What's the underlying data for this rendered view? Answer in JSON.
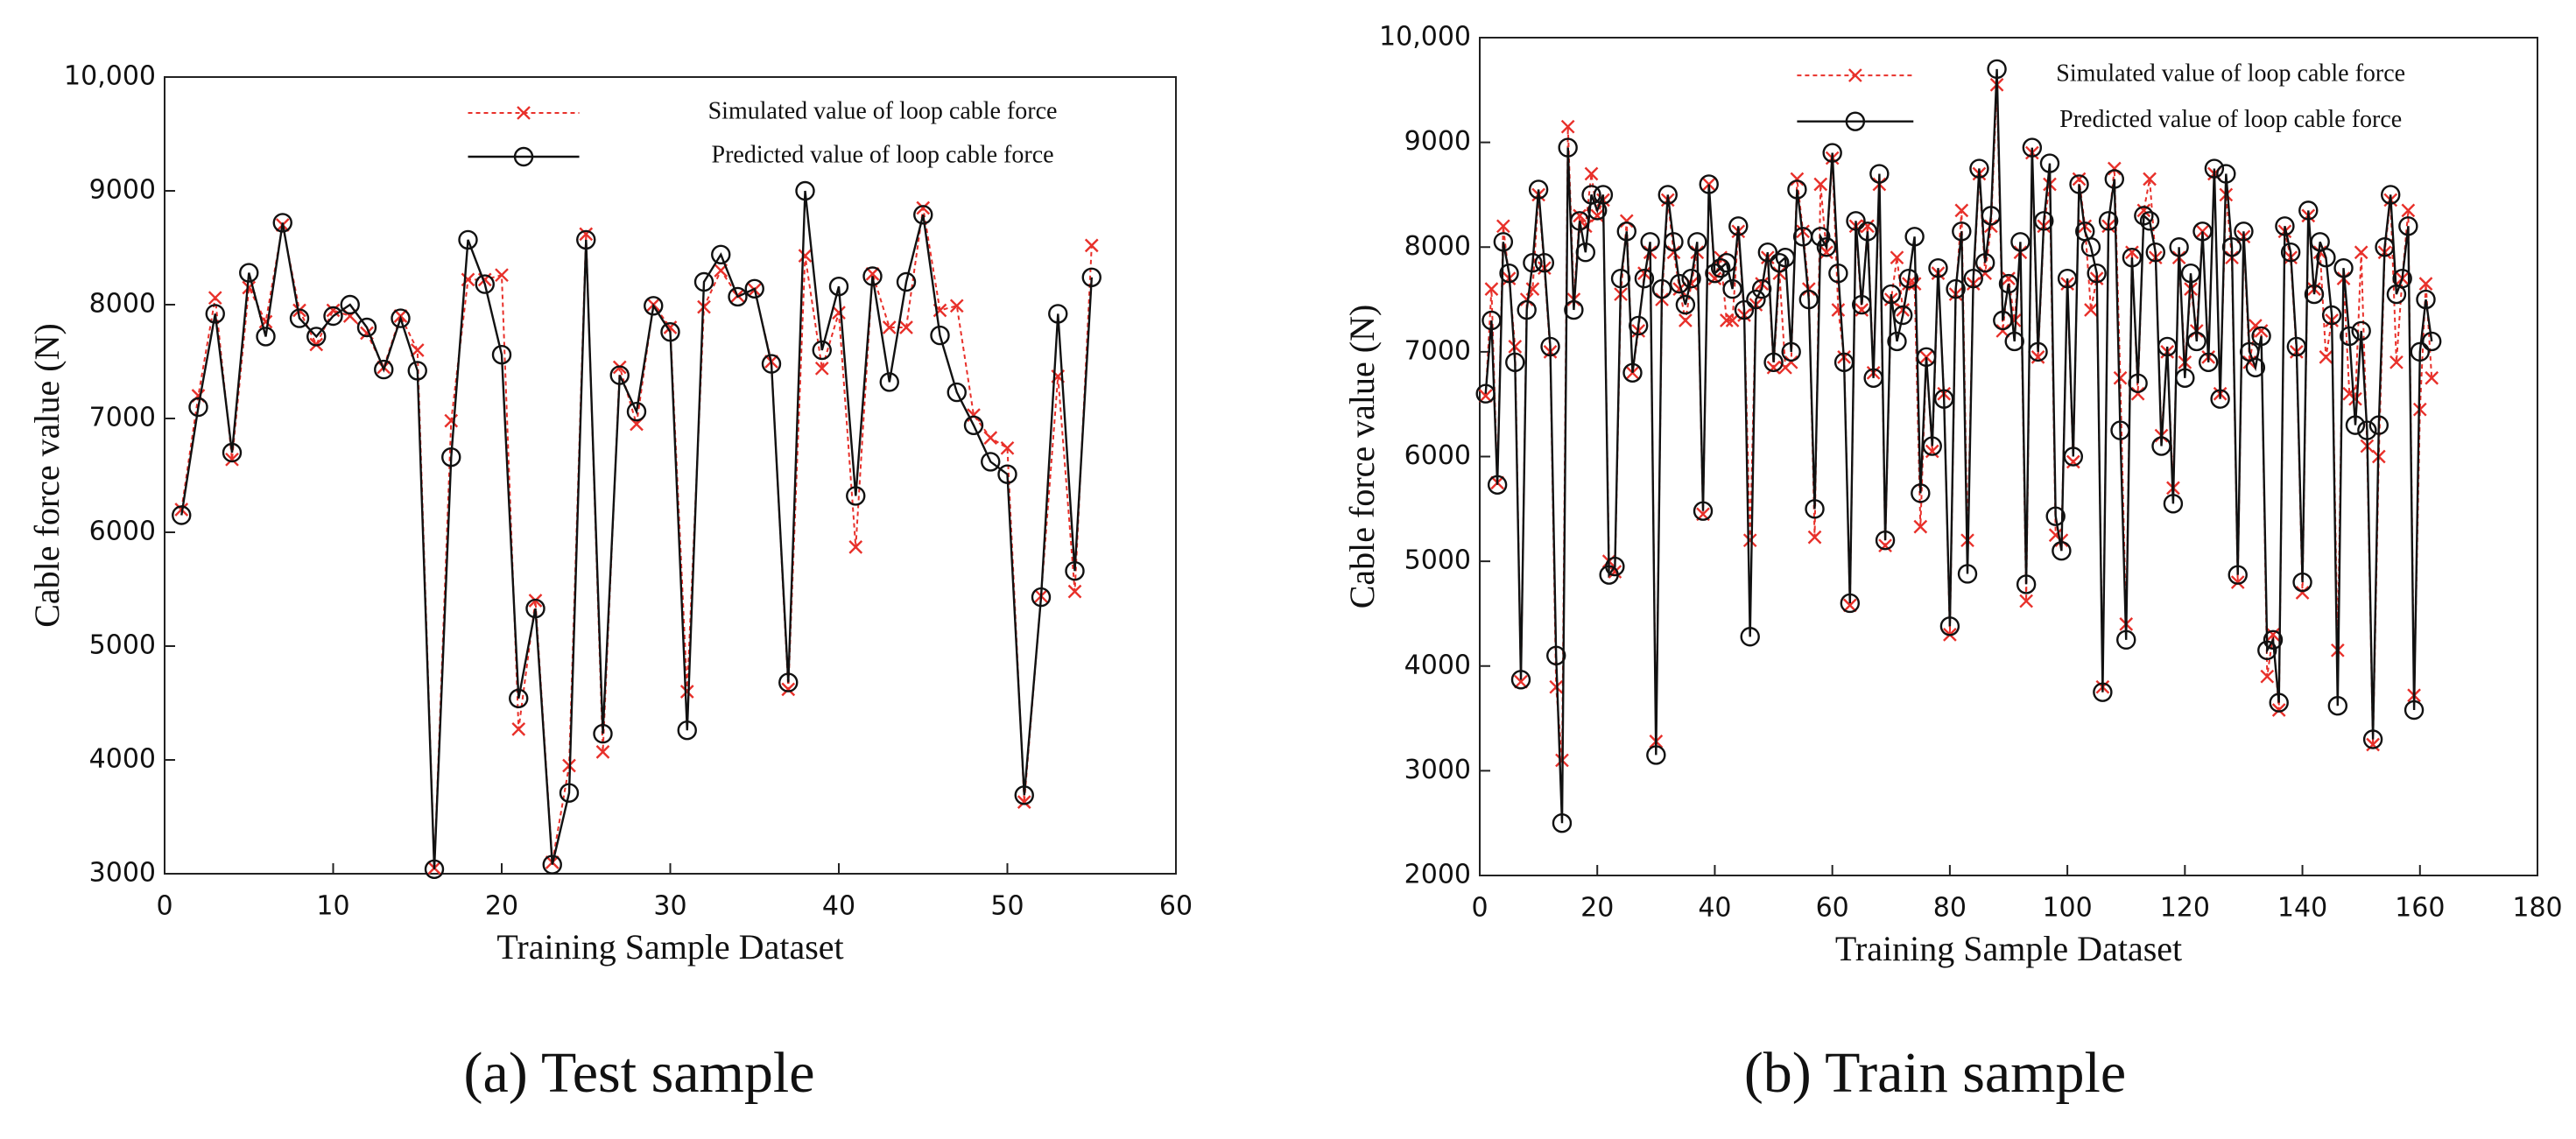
{
  "chart_data": [
    {
      "type": "line",
      "caption": "(a) Test sample",
      "xlabel": "Training Sample Dataset",
      "ylabel": "Cable force value (N)",
      "legend": "upper right",
      "grid": false,
      "xlim": [
        0,
        60
      ],
      "xticks": [
        0,
        10,
        20,
        30,
        40,
        50,
        60
      ],
      "ylim": [
        3000,
        10000
      ],
      "yticks": [
        3000,
        4000,
        5000,
        6000,
        7000,
        8000,
        9000,
        {
          "value": 10000,
          "label": "10,000"
        }
      ],
      "x": [
        1,
        2,
        3,
        4,
        5,
        6,
        7,
        8,
        9,
        10,
        11,
        12,
        13,
        14,
        15,
        16,
        17,
        18,
        19,
        20,
        21,
        22,
        23,
        24,
        25,
        26,
        27,
        28,
        29,
        30,
        31,
        32,
        33,
        34,
        35,
        36,
        37,
        38,
        39,
        40,
        41,
        42,
        43,
        44,
        45,
        46,
        47,
        48,
        49,
        50,
        51,
        52,
        53,
        54,
        55
      ],
      "series": [
        {
          "name": "Simulated value of loop cable force",
          "color": "#e8302a",
          "linestyle": "dotted",
          "marker": "x",
          "values": [
            6200,
            7200,
            8060,
            6640,
            8150,
            7850,
            8700,
            7950,
            7650,
            7950,
            7900,
            7750,
            7450,
            7900,
            7600,
            3050,
            6980,
            8220,
            8220,
            8260,
            4270,
            5400,
            3100,
            3950,
            8620,
            4070,
            7450,
            6950,
            8000,
            7800,
            4600,
            7980,
            8300,
            8080,
            8130,
            7500,
            4620,
            8430,
            7440,
            7930,
            5870,
            8270,
            7800,
            7800,
            8850,
            7950,
            7990,
            7030,
            6830,
            6740,
            3630,
            5440,
            7370,
            5480,
            8520
          ]
        },
        {
          "name": "Predicted value of loop cable force",
          "color": "#111111",
          "linestyle": "solid",
          "marker": "o",
          "values": [
            6150,
            7100,
            7920,
            6700,
            8280,
            7720,
            8720,
            7880,
            7720,
            7900,
            8000,
            7800,
            7430,
            7880,
            7420,
            3040,
            6660,
            8570,
            8180,
            7560,
            4540,
            5330,
            3080,
            3710,
            8570,
            4230,
            7380,
            7060,
            7990,
            7760,
            4260,
            8200,
            8440,
            8070,
            8140,
            7480,
            4680,
            9000,
            7600,
            8160,
            6320,
            8250,
            7320,
            8200,
            8790,
            7730,
            7230,
            6940,
            6620,
            6510,
            3690,
            5430,
            7920,
            5660,
            8240
          ]
        }
      ]
    },
    {
      "type": "line",
      "caption": "(b) Train sample",
      "xlabel": "Training Sample Dataset",
      "ylabel": "Cable force value (N)",
      "legend": "upper right",
      "grid": false,
      "xlim": [
        0,
        180
      ],
      "xticks": [
        0,
        20,
        40,
        60,
        80,
        100,
        120,
        140,
        160,
        180
      ],
      "ylim": [
        2000,
        10000
      ],
      "yticks": [
        2000,
        3000,
        4000,
        5000,
        6000,
        7000,
        8000,
        9000,
        {
          "value": 10000,
          "label": "10,000"
        }
      ],
      "x": [
        1,
        2,
        3,
        4,
        5,
        6,
        7,
        8,
        9,
        10,
        11,
        12,
        13,
        14,
        15,
        16,
        17,
        18,
        19,
        20,
        21,
        22,
        23,
        24,
        25,
        26,
        27,
        28,
        29,
        30,
        31,
        32,
        33,
        34,
        35,
        36,
        37,
        38,
        39,
        40,
        41,
        42,
        43,
        44,
        45,
        46,
        47,
        48,
        49,
        50,
        51,
        52,
        53,
        54,
        55,
        56,
        57,
        58,
        59,
        60,
        61,
        62,
        63,
        64,
        65,
        66,
        67,
        68,
        69,
        70,
        71,
        72,
        73,
        74,
        75,
        76,
        77,
        78,
        79,
        80,
        81,
        82,
        83,
        84,
        85,
        86,
        87,
        88,
        89,
        90,
        91,
        92,
        93,
        94,
        95,
        96,
        97,
        98,
        99,
        100,
        101,
        102,
        103,
        104,
        105,
        106,
        107,
        108,
        109,
        110,
        111,
        112,
        113,
        114,
        115,
        116,
        117,
        118,
        119,
        120,
        121,
        122,
        123,
        124,
        125,
        126,
        127,
        128,
        129,
        130,
        131,
        132,
        133,
        134,
        135,
        136,
        137,
        138,
        139,
        140,
        141,
        142,
        143,
        144,
        145,
        146,
        147,
        148,
        149,
        150,
        151,
        152,
        153,
        154,
        155,
        156,
        157,
        158,
        159,
        160,
        161,
        162
      ],
      "series": [
        {
          "name": "Simulated value of loop cable force",
          "color": "#e8302a",
          "linestyle": "dotted",
          "marker": "x",
          "values": [
            6580,
            7600,
            5750,
            8200,
            7700,
            7050,
            3850,
            7500,
            7600,
            8500,
            7800,
            7000,
            3800,
            3100,
            9150,
            7500,
            8300,
            8200,
            8700,
            8300,
            8450,
            5000,
            4900,
            7550,
            8250,
            6800,
            7200,
            7750,
            7950,
            3280,
            7500,
            8450,
            7950,
            7600,
            7300,
            7650,
            7950,
            5450,
            8600,
            7700,
            7900,
            7300,
            7300,
            8150,
            7350,
            5200,
            7450,
            7650,
            7900,
            6850,
            7750,
            6850,
            6900,
            8650,
            8150,
            7600,
            5230,
            8600,
            7950,
            8850,
            7400,
            6950,
            4580,
            8200,
            7400,
            8200,
            6800,
            8600,
            5150,
            7500,
            7900,
            7400,
            7650,
            7650,
            5330,
            6950,
            6050,
            7750,
            6600,
            4300,
            7550,
            8350,
            5200,
            7650,
            8700,
            7750,
            8200,
            9550,
            7200,
            7700,
            7300,
            7950,
            4620,
            8900,
            6950,
            8200,
            8600,
            5250,
            5200,
            7650,
            5950,
            8650,
            8200,
            7400,
            7700,
            3800,
            8200,
            8750,
            6750,
            4400,
            7950,
            6600,
            8350,
            8650,
            7900,
            6200,
            7000,
            5700,
            7900,
            6900,
            7600,
            7200,
            8150,
            6950,
            8700,
            6600,
            8500,
            7900,
            4800,
            8100,
            6900,
            7250,
            7200,
            3900,
            4300,
            3580,
            8150,
            7900,
            7000,
            4700,
            8300,
            7600,
            7950,
            6950,
            7300,
            4150,
            7700,
            6600,
            6550,
            7950,
            6100,
            3250,
            6000,
            7950,
            8450,
            6900,
            7700,
            8350,
            3720,
            6450,
            7650,
            6750
          ]
        },
        {
          "name": "Predicted value of loop cable force",
          "color": "#111111",
          "linestyle": "solid",
          "marker": "o",
          "values": [
            6600,
            7300,
            5730,
            8050,
            7750,
            6900,
            3870,
            7400,
            7850,
            8550,
            7850,
            7050,
            4100,
            2500,
            8950,
            7400,
            8250,
            7950,
            8500,
            8350,
            8500,
            4870,
            4950,
            7700,
            8150,
            6800,
            7250,
            7700,
            8050,
            3150,
            7600,
            8500,
            8050,
            7650,
            7450,
            7700,
            8050,
            5480,
            8600,
            7750,
            7800,
            7850,
            7600,
            8200,
            7400,
            4280,
            7500,
            7600,
            7950,
            6900,
            7850,
            7900,
            7000,
            8550,
            8100,
            7500,
            5500,
            8100,
            8000,
            8900,
            7750,
            6900,
            4600,
            8250,
            7450,
            8150,
            6750,
            8700,
            5200,
            7550,
            7100,
            7350,
            7700,
            8100,
            5650,
            6950,
            6100,
            7800,
            6550,
            4380,
            7600,
            8150,
            4880,
            7700,
            8750,
            7850,
            8300,
            9700,
            7300,
            7650,
            7100,
            8050,
            4780,
            8950,
            7000,
            8250,
            8800,
            5430,
            5100,
            7700,
            6000,
            8600,
            8150,
            8000,
            7750,
            3750,
            8250,
            8650,
            6250,
            4250,
            7900,
            6700,
            8300,
            8250,
            7950,
            6100,
            7050,
            5550,
            8000,
            6750,
            7750,
            7100,
            8150,
            6900,
            8750,
            6550,
            8700,
            8000,
            4870,
            8150,
            7000,
            6850,
            7150,
            4150,
            4250,
            3650,
            8200,
            7950,
            7050,
            4800,
            8350,
            7550,
            8050,
            7900,
            7350,
            3620,
            7800,
            7150,
            6300,
            7200,
            6250,
            3300,
            6300,
            8000,
            8500,
            7550,
            7700,
            8200,
            3580,
            7000,
            7500,
            7100
          ]
        }
      ]
    }
  ]
}
